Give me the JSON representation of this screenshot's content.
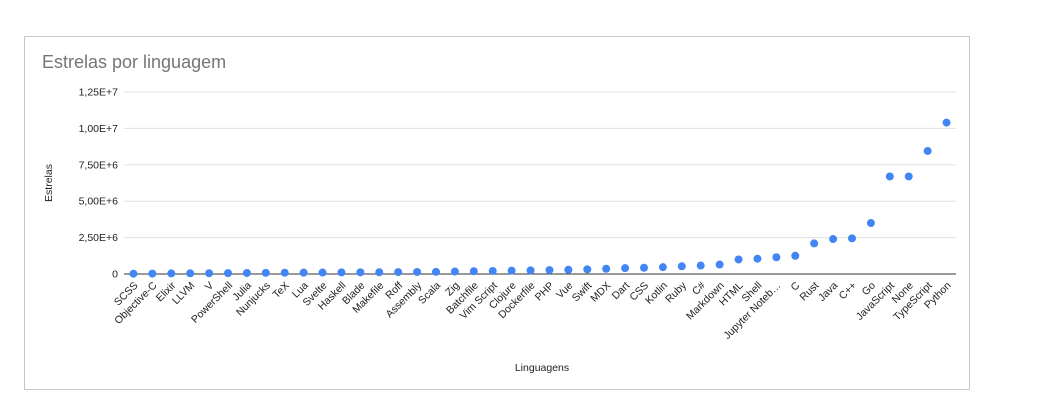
{
  "chart_data": {
    "type": "scatter",
    "title": "Estrelas por linguagem",
    "xlabel": "Linguagens",
    "ylabel": "Estrelas",
    "ylim": [
      0,
      12500000
    ],
    "y_ticks": [
      {
        "value": 0,
        "label": "0"
      },
      {
        "value": 2500000,
        "label": "2,50E+6"
      },
      {
        "value": 5000000,
        "label": "5,00E+6"
      },
      {
        "value": 7500000,
        "label": "7,50E+6"
      },
      {
        "value": 10000000,
        "label": "1,00E+7"
      },
      {
        "value": 12500000,
        "label": "1,25E+7"
      }
    ],
    "grid": true,
    "legend": "none",
    "point_color": "#4285f4",
    "categories": [
      "SCSS",
      "Objective-C",
      "Elixir",
      "LLVM",
      "V",
      "PowerShell",
      "Julia",
      "Nunjucks",
      "TeX",
      "Lua",
      "Svelte",
      "Haskell",
      "Blade",
      "Makefile",
      "Roff",
      "Assembly",
      "Scala",
      "Zig",
      "Batchfile",
      "Vim Script",
      "Clojure",
      "Dockerfile",
      "PHP",
      "Vue",
      "Swift",
      "MDX",
      "Dart",
      "CSS",
      "Kotlin",
      "Ruby",
      "C#",
      "Markdown",
      "HTML",
      "Shell",
      "Jupyter Noteb…",
      "C",
      "Rust",
      "Java",
      "C++",
      "Go",
      "JavaScript",
      "None",
      "TypeScript",
      "Python"
    ],
    "values": [
      20000,
      30000,
      40000,
      50000,
      55000,
      60000,
      70000,
      80000,
      90000,
      95000,
      100000,
      110000,
      115000,
      120000,
      130000,
      140000,
      150000,
      170000,
      190000,
      210000,
      230000,
      250000,
      270000,
      290000,
      320000,
      360000,
      400000,
      430000,
      470000,
      530000,
      580000,
      650000,
      1000000,
      1050000,
      1150000,
      1250000,
      2100000,
      2400000,
      2450000,
      3500000,
      6700000,
      6700000,
      8450000,
      10400000
    ]
  }
}
